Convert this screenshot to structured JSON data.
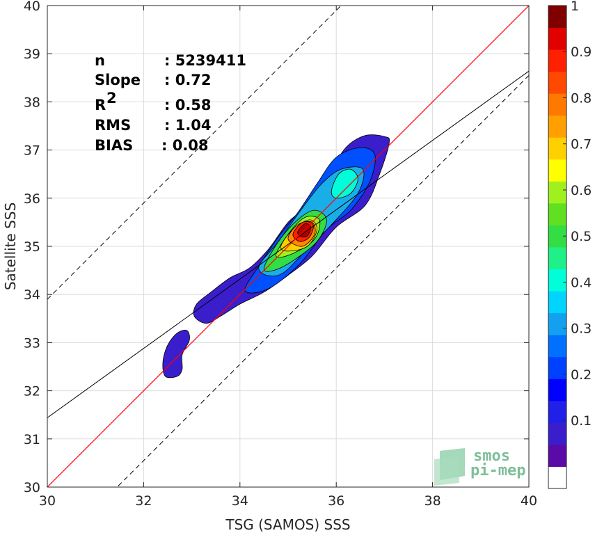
{
  "chart_data": {
    "type": "scatter",
    "subtype": "density-contour",
    "xlabel": "TSG (SAMOS) SSS",
    "ylabel": "Satellite SSS",
    "xlim": [
      30,
      40
    ],
    "ylim": [
      30,
      40
    ],
    "xticks": [
      "30",
      "32",
      "34",
      "36",
      "38",
      "40"
    ],
    "yticks": [
      "30",
      "31",
      "32",
      "33",
      "34",
      "35",
      "36",
      "37",
      "38",
      "39",
      "40"
    ],
    "grid": true,
    "stats": [
      {
        "label": "n",
        "value": ": 5239411"
      },
      {
        "label": "Slope",
        "value": ": 0.72"
      },
      {
        "label": "R",
        "sup": "2",
        "value": ": 0.58"
      },
      {
        "label": "RMS",
        "value": ": 1.04"
      },
      {
        "label": "BIAS",
        "value": ": 0.08"
      }
    ],
    "lines": {
      "identity": {
        "slope": 1,
        "intercept": 0,
        "color": "#ff0000"
      },
      "regression": {
        "slope": 0.72,
        "x0": 30,
        "y0": 31.44,
        "color": "#000000"
      },
      "offset_upper": {
        "slope": 1,
        "intercept": 3.9,
        "style": "dashed"
      },
      "offset_lower": {
        "slope": 1,
        "intercept": -1.45,
        "style": "dashed"
      }
    },
    "contours": [
      {
        "level": 0.05,
        "color": "#3a1ecc",
        "points": [
          [
            33.8,
            34.35
          ],
          [
            34.2,
            34.55
          ],
          [
            34.6,
            34.95
          ],
          [
            35.0,
            35.5
          ],
          [
            35.4,
            35.85
          ],
          [
            35.8,
            36.45
          ],
          [
            36.2,
            37.05
          ],
          [
            36.6,
            37.3
          ],
          [
            37.0,
            37.28
          ],
          [
            37.1,
            37.15
          ],
          [
            36.9,
            36.5
          ],
          [
            36.6,
            35.85
          ],
          [
            36.0,
            35.4
          ],
          [
            35.5,
            34.8
          ],
          [
            35.0,
            34.4
          ],
          [
            34.5,
            34.05
          ],
          [
            34.0,
            33.8
          ],
          [
            33.6,
            33.55
          ],
          [
            33.3,
            33.4
          ],
          [
            33.05,
            33.55
          ],
          [
            33.1,
            33.8
          ],
          [
            33.4,
            34.05
          ]
        ]
      },
      {
        "level": 0.05,
        "color": "#3a1ecc",
        "points": [
          [
            32.45,
            32.3
          ],
          [
            32.4,
            32.6
          ],
          [
            32.5,
            32.95
          ],
          [
            32.7,
            33.2
          ],
          [
            32.9,
            33.25
          ],
          [
            32.95,
            33.05
          ],
          [
            32.8,
            32.75
          ],
          [
            32.8,
            32.45
          ],
          [
            32.7,
            32.3
          ]
        ]
      },
      {
        "level": 0.2,
        "color": "#0050ff",
        "points": [
          [
            34.1,
            34.1
          ],
          [
            34.4,
            34.6
          ],
          [
            34.8,
            35.2
          ],
          [
            35.2,
            35.7
          ],
          [
            35.6,
            36.3
          ],
          [
            36.0,
            36.85
          ],
          [
            36.5,
            37.05
          ],
          [
            36.8,
            36.9
          ],
          [
            36.7,
            36.35
          ],
          [
            36.3,
            35.75
          ],
          [
            35.8,
            35.35
          ],
          [
            35.3,
            34.7
          ],
          [
            34.8,
            34.25
          ],
          [
            34.4,
            34.05
          ]
        ]
      },
      {
        "level": 0.3,
        "color": "#1aaee8",
        "points": [
          [
            34.4,
            34.6
          ],
          [
            34.8,
            35.1
          ],
          [
            35.3,
            35.8
          ],
          [
            35.7,
            36.3
          ],
          [
            36.1,
            36.6
          ],
          [
            36.55,
            36.6
          ],
          [
            36.45,
            36.1
          ],
          [
            35.9,
            35.45
          ],
          [
            35.4,
            34.95
          ],
          [
            34.9,
            34.45
          ],
          [
            34.55,
            34.4
          ]
        ]
      },
      {
        "level": 0.4,
        "color": "#00ffd8",
        "points": [
          [
            35.9,
            36.15
          ],
          [
            36.05,
            36.5
          ],
          [
            36.3,
            36.6
          ],
          [
            36.45,
            36.4
          ],
          [
            36.3,
            36.1
          ],
          [
            36.0,
            36.0
          ]
        ]
      },
      {
        "level": 0.5,
        "color": "#33dd44",
        "points": [
          [
            34.5,
            34.55
          ],
          [
            34.8,
            35.1
          ],
          [
            35.2,
            35.55
          ],
          [
            35.55,
            35.75
          ],
          [
            35.8,
            35.55
          ],
          [
            35.6,
            35.1
          ],
          [
            35.1,
            34.7
          ],
          [
            34.7,
            34.5
          ]
        ]
      },
      {
        "level": 0.6,
        "color": "#a0f020",
        "points": [
          [
            34.75,
            34.8
          ],
          [
            35.0,
            35.25
          ],
          [
            35.35,
            35.6
          ],
          [
            35.65,
            35.55
          ],
          [
            35.55,
            35.15
          ],
          [
            35.1,
            34.85
          ]
        ]
      },
      {
        "level": 0.7,
        "color": "#ffd000",
        "points": [
          [
            34.85,
            35.0
          ],
          [
            35.1,
            35.35
          ],
          [
            35.45,
            35.55
          ],
          [
            35.6,
            35.35
          ],
          [
            35.4,
            35.0
          ],
          [
            35.0,
            34.9
          ]
        ]
      },
      {
        "level": 0.8,
        "color": "#ff8800",
        "points": [
          [
            35.0,
            35.15
          ],
          [
            35.2,
            35.45
          ],
          [
            35.5,
            35.5
          ],
          [
            35.55,
            35.25
          ],
          [
            35.3,
            35.0
          ]
        ]
      },
      {
        "level": 0.9,
        "color": "#ff2000",
        "points": [
          [
            35.1,
            35.25
          ],
          [
            35.3,
            35.5
          ],
          [
            35.52,
            35.45
          ],
          [
            35.45,
            35.2
          ],
          [
            35.25,
            35.1
          ]
        ]
      },
      {
        "level": 1.0,
        "color": "#b00000",
        "points": [
          [
            35.2,
            35.3
          ],
          [
            35.35,
            35.47
          ],
          [
            35.47,
            35.4
          ],
          [
            35.4,
            35.22
          ],
          [
            35.27,
            35.2
          ]
        ]
      }
    ],
    "colorbar": {
      "colors": [
        "#ffffff",
        "#5a0aa8",
        "#3a1ecc",
        "#2020e8",
        "#0000ff",
        "#0040ff",
        "#0070ff",
        "#14a0f0",
        "#00d4ff",
        "#00ffd8",
        "#20f088",
        "#33dd44",
        "#60e020",
        "#a0f020",
        "#ffff00",
        "#ffd000",
        "#ffa000",
        "#ff7800",
        "#ff4800",
        "#ff2000",
        "#e00000",
        "#800000"
      ],
      "ticks": [
        {
          "label": "0.1",
          "value": 0.1
        },
        {
          "label": "0.2",
          "value": 0.2
        },
        {
          "label": "0.3",
          "value": 0.3
        },
        {
          "label": "0.4",
          "value": 0.4
        },
        {
          "label": "0.5",
          "value": 0.5
        },
        {
          "label": "0.6",
          "value": 0.6
        },
        {
          "label": "0.7",
          "value": 0.7
        },
        {
          "label": "0.8",
          "value": 0.8
        },
        {
          "label": "0.9",
          "value": 0.9
        },
        {
          "label": "1",
          "value": 1.0
        }
      ]
    }
  },
  "logo": {
    "line1": "smos",
    "line2": "pi-mep"
  }
}
